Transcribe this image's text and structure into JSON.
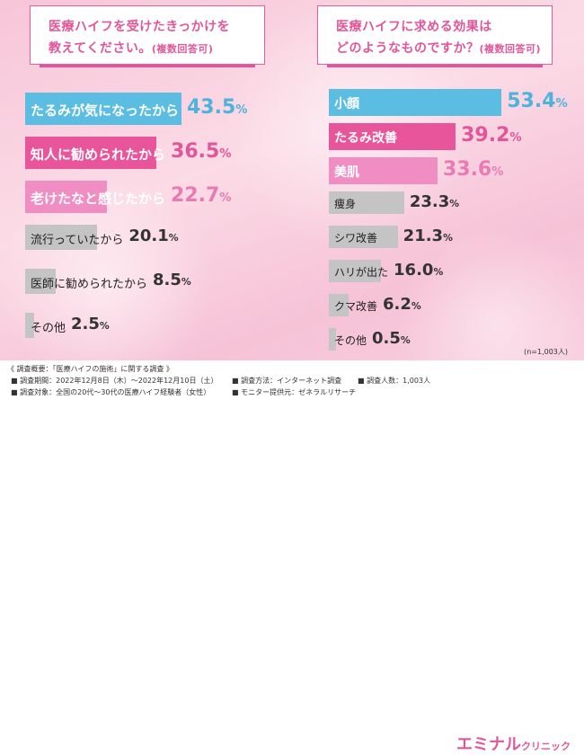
{
  "chart_data": [
    {
      "type": "bar",
      "orientation": "horizontal",
      "title": "医療ハイフを受けたきっかけを教えてください。",
      "title_line1": "医療ハイフを受けたきっかけを",
      "title_line2": "教えてください。",
      "subtitle": "(複数回答可)",
      "unit": "%",
      "categories": [
        "たるみが気になったから",
        "知人に勧められたから",
        "老けたなと感じたから",
        "流行っていたから",
        "医師に勧められたから",
        "その他"
      ],
      "values": [
        43.5,
        36.5,
        22.7,
        20.1,
        8.5,
        2.5
      ],
      "colors": [
        "#5bbde2",
        "#e8559a",
        "#f08ec4",
        "#c4c4c4",
        "#c4c4c4",
        "#c4c4c4"
      ],
      "label_colors": [
        "#ffffff",
        "#ffffff",
        "#ffffff",
        "#222222",
        "#222222",
        "#222222"
      ]
    },
    {
      "type": "bar",
      "orientation": "horizontal",
      "title": "医療ハイフに求める効果はどのようなものですか？",
      "title_line1": "医療ハイフに求める効果は",
      "title_line2": "どのようなものですか？",
      "subtitle": "(複数回答可)",
      "unit": "%",
      "categories": [
        "小顔",
        "たるみ改善",
        "美肌",
        "痩身",
        "シワ改善",
        "ハリが出た",
        "クマ改善",
        "その他"
      ],
      "values": [
        53.4,
        39.2,
        33.6,
        23.3,
        21.3,
        16.0,
        6.2,
        0.5
      ],
      "colors": [
        "#5bbde2",
        "#e8559a",
        "#f08ec4",
        "#c4c4c4",
        "#c4c4c4",
        "#c4c4c4",
        "#c4c4c4",
        "#c4c4c4"
      ],
      "label_colors": [
        "#ffffff",
        "#ffffff",
        "#ffffff",
        "#222222",
        "#222222",
        "#222222",
        "#222222",
        "#222222"
      ]
    }
  ],
  "note": "(n=1,003人)",
  "footer": {
    "heading": "《 調査概要：「医療ハイフの施術」に関する調査 》",
    "period": "■ 調査期間：2022年12月8日（木）〜2022年12月10日（土）",
    "method": "■ 調査方法：インターネット調査",
    "count": "■ 調査人数：1,003人",
    "target": "■ 調査対象：全国の20代〜30代の医療ハイフ経験者（女性）",
    "provider": "■ モニター提供元：ゼネラルリサーチ",
    "logo_main": "エミナル",
    "logo_sub": "クリニック"
  },
  "colors": {
    "accent": "#e3559a",
    "blue": "#5bbde2",
    "gray": "#c4c4c4"
  }
}
